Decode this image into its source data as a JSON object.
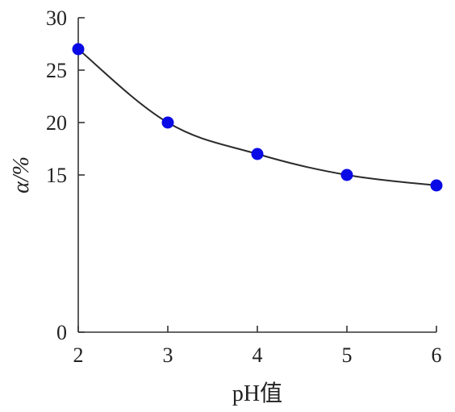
{
  "chart_data": {
    "type": "line",
    "x": [
      2,
      3,
      4,
      5,
      6
    ],
    "series": [
      {
        "values": [
          27.0,
          20.0,
          17.0,
          15.0,
          14.0
        ]
      }
    ],
    "xlabel": "pH值",
    "ylabel": "α/%",
    "xlim": [
      2,
      6
    ],
    "ylim": [
      0,
      30
    ],
    "xticks": [
      "2",
      "3",
      "4",
      "5",
      "6"
    ],
    "yticks": [
      "0",
      "15",
      "20",
      "25",
      "30"
    ],
    "ytick_values": [
      0,
      15,
      20,
      25,
      30
    ],
    "grid": false,
    "colors": {
      "marker": "#0a0ae6",
      "line": "#2b2b2b",
      "axis": "#333333"
    }
  }
}
